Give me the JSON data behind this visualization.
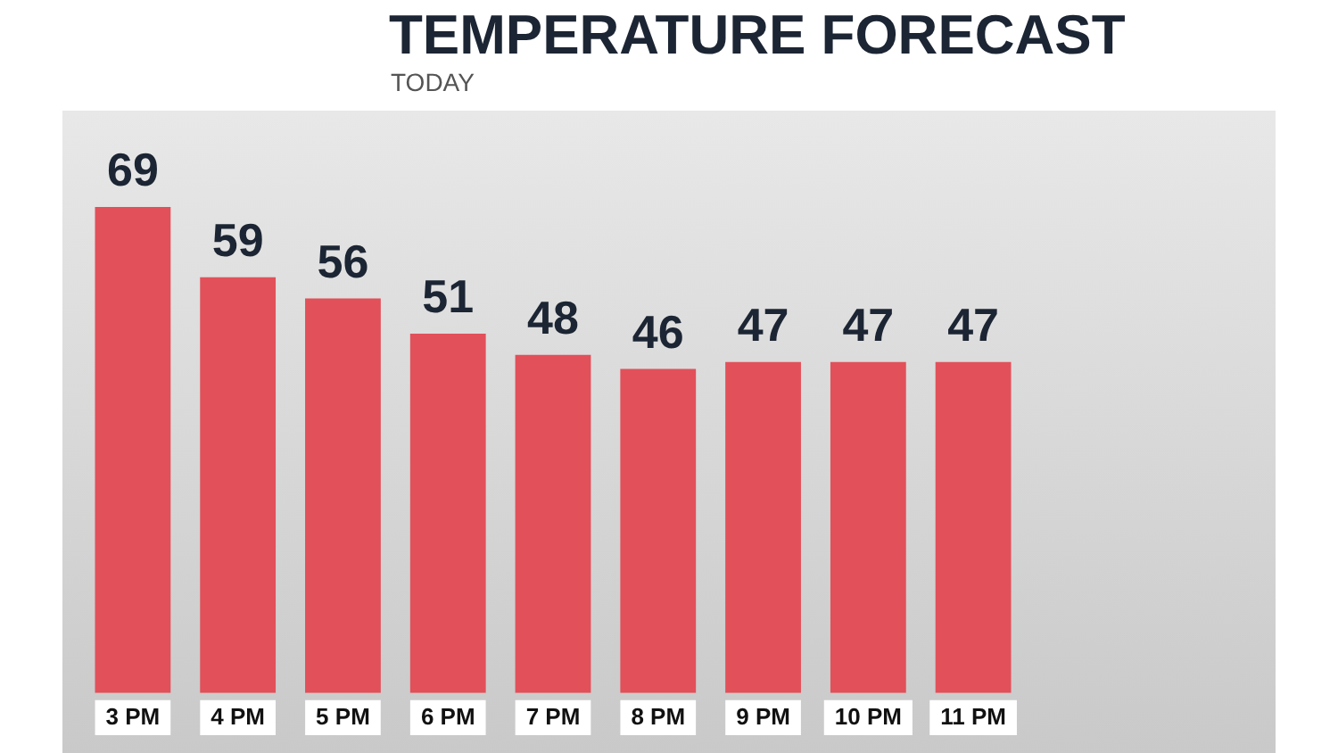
{
  "chart_data": {
    "type": "bar",
    "title": "TEMPERATURE FORECAST",
    "subtitle": "TODAY",
    "categories": [
      "3 PM",
      "4 PM",
      "5 PM",
      "6 PM",
      "7 PM",
      "8 PM",
      "9 PM",
      "10 PM",
      "11 PM"
    ],
    "values": [
      69,
      59,
      56,
      51,
      48,
      46,
      47,
      47,
      47
    ],
    "color": "#e2505a",
    "tick_labels": "x",
    "data_labels": true,
    "grid": false,
    "legend": false
  }
}
